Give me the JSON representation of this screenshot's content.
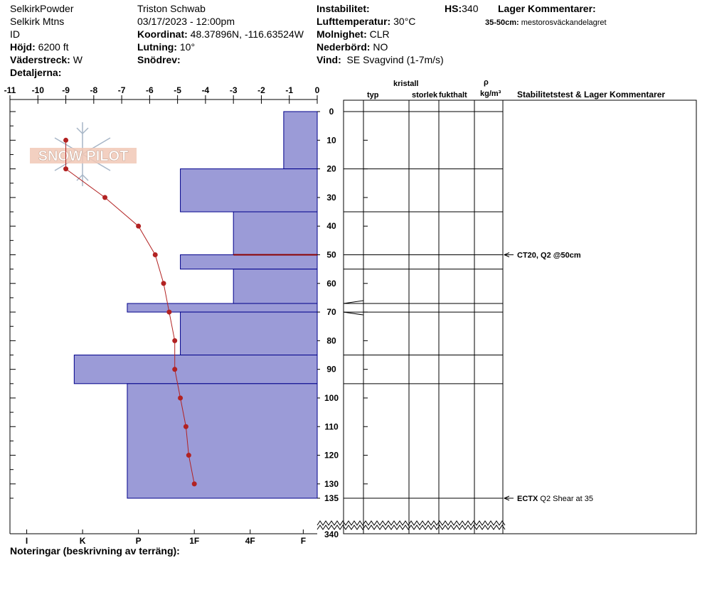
{
  "header": {
    "c1": [
      "SelkirkPowder",
      "Selkirk Mtns",
      "ID"
    ],
    "hojd_label": "Höjd:",
    "hojd_value": "6200 ft",
    "vader_label": "Väderstreck:",
    "vader_value": "W",
    "detaljer_label": "Detaljerna:",
    "observer": "Triston Schwab",
    "datetime": "03/17/2023 - 12:00pm",
    "koordinat_label": "Koordinat:",
    "koordinat_value": "48.37896N, -116.63524W",
    "lutning_label": "Lutning:",
    "lutning_value": "10°",
    "snodrev_label": "Snödrev:",
    "instab_label": "Instabilitet:",
    "luft_label": "Lufttemperatur:",
    "luft_value": "30°C",
    "moln_label": "Molnighet:",
    "moln_value": "CLR",
    "neder_label": "Nederbörd:",
    "neder_value": "NO",
    "vind_label": "Vind:",
    "vind_value": "SE  Svagvind (1-7m/s)",
    "hs_label": "HS:",
    "hs_value": "340",
    "lager_label": "Lager Kommentarer:",
    "lager_range": "35-50cm:",
    "lager_text": "mestorosväckandelagret"
  },
  "columns": {
    "kristall": "kristall",
    "typ": "typ",
    "storlek": "storlek",
    "fukthalt": "fukthalt",
    "rho": "ρ",
    "density_unit": "kg/m³",
    "stab": "Stabilitetstest & Lager Kommentarer"
  },
  "notes_label": "Noteringar (beskrivning av terräng):",
  "logo_text": "SNOW PILOT",
  "colors": {
    "bars": "#9b9bd7",
    "bar_edge": "#00008b",
    "temp": "#b22222",
    "layer_line": "#8b0000"
  },
  "chart_data": {
    "type": "bar",
    "temp_axis": {
      "ticks": [
        "-11",
        "-10",
        "-9",
        "-8",
        "-7",
        "-6",
        "-5",
        "-4",
        "-3",
        "-2",
        "-1",
        "0"
      ],
      "range": [
        -11,
        0
      ]
    },
    "depth_axis": {
      "ticks": [
        "0",
        "10",
        "20",
        "30",
        "40",
        "50",
        "60",
        "70",
        "80",
        "90",
        "100",
        "110",
        "120",
        "130",
        "135"
      ],
      "end_label": "340",
      "range": [
        0,
        135
      ]
    },
    "hardness_axis": {
      "labels": [
        "I",
        "K",
        "P",
        "1F",
        "4F",
        "F"
      ]
    },
    "hardness_layers": [
      {
        "top": 0,
        "bottom": 20,
        "value": -1.2
      },
      {
        "top": 20,
        "bottom": 35,
        "value": -4.9
      },
      {
        "top": 35,
        "bottom": 50,
        "value": -3.0
      },
      {
        "top": 50,
        "bottom": 55,
        "value": -4.9
      },
      {
        "top": 55,
        "bottom": 67,
        "value": -3.0
      },
      {
        "top": 67,
        "bottom": 70,
        "value": -6.8
      },
      {
        "top": 70,
        "bottom": 85,
        "value": -4.9
      },
      {
        "top": 85,
        "bottom": 95,
        "value": -8.7
      },
      {
        "top": 95,
        "bottom": 135,
        "value": -6.8
      }
    ],
    "temperature_profile": [
      {
        "depth": 10,
        "temp": -9.0
      },
      {
        "depth": 20,
        "temp": -9.0
      },
      {
        "depth": 30,
        "temp": -7.6
      },
      {
        "depth": 40,
        "temp": -6.4
      },
      {
        "depth": 50,
        "temp": -5.8
      },
      {
        "depth": 60,
        "temp": -5.5
      },
      {
        "depth": 70,
        "temp": -5.3
      },
      {
        "depth": 80,
        "temp": -5.1
      },
      {
        "depth": 90,
        "temp": -5.1
      },
      {
        "depth": 100,
        "temp": -4.9
      },
      {
        "depth": 110,
        "temp": -4.7
      },
      {
        "depth": 120,
        "temp": -4.6
      },
      {
        "depth": 130,
        "temp": -4.4
      }
    ],
    "layer_boundaries": [
      0,
      20,
      35,
      50,
      55,
      67,
      70,
      85,
      95,
      135
    ],
    "highlight_boundary": 50,
    "stability_tests": [
      {
        "depth": 50,
        "label": "CT20, Q2 @50cm"
      },
      {
        "depth": 135,
        "label": "ECTX",
        "text": "Q2 Shear at 35"
      }
    ]
  }
}
